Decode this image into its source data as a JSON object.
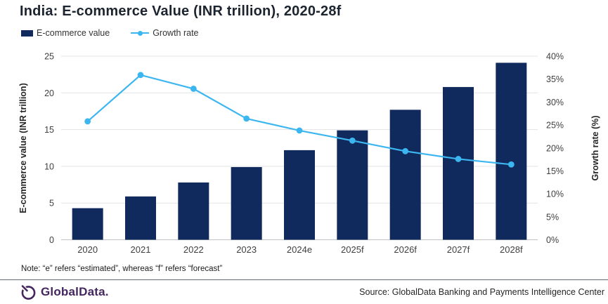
{
  "title": "India: E-commerce Value (INR trillion), 2020-28f",
  "legend": {
    "items": [
      {
        "label": "E-commerce value",
        "marker": "bar-swatch"
      },
      {
        "label": "Growth rate",
        "marker": "line-swatch"
      }
    ]
  },
  "note": "Note: “e” refers “estimated”, whereas “f” refers “forecast”",
  "footer": {
    "logo_text": "GlobalData.",
    "source": "Source: GlobalData Banking and Payments Intelligence Center"
  },
  "colors": {
    "bar": "#112A5E",
    "line": "#3CB6F0",
    "title_text": "#1C2430",
    "tick_text": "#3F3F3F",
    "grid": "#E2E3E6",
    "axis_line": "#BFC2C6",
    "divider": "#5E6A75",
    "logo": "#45265E",
    "note_text": "#1A1A1A",
    "source_text": "#262626"
  },
  "chart_data": {
    "type": "bar",
    "combo": "bar+line",
    "title": "India: E-commerce Value (INR trillion), 2020-28f",
    "categories": [
      "2020",
      "2021",
      "2022",
      "2023",
      "2024e",
      "2025f",
      "2026f",
      "2027f",
      "2028f"
    ],
    "series": [
      {
        "name": "E-commerce value",
        "type": "bar",
        "axis": "left",
        "values": [
          4.3,
          5.9,
          7.8,
          9.9,
          12.2,
          14.9,
          17.7,
          20.8,
          24.1
        ]
      },
      {
        "name": "Growth rate",
        "type": "line",
        "axis": "right",
        "values": [
          25.8,
          35.9,
          32.9,
          26.4,
          23.8,
          21.6,
          19.3,
          17.6,
          16.4
        ]
      }
    ],
    "left_axis": {
      "label": "E-commerce value (INR trillion)",
      "min": 0,
      "max": 25,
      "step": 5
    },
    "right_axis": {
      "label": "Growth rate (%)",
      "min": 0,
      "max": 40,
      "step": 5,
      "tick_suffix": "%"
    },
    "grid": true,
    "legend_position": "top-left"
  }
}
